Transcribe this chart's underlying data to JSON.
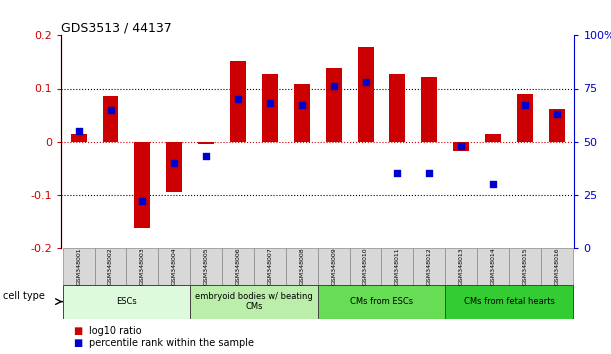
{
  "title": "GDS3513 / 44137",
  "samples": [
    "GSM348001",
    "GSM348002",
    "GSM348003",
    "GSM348004",
    "GSM348005",
    "GSM348006",
    "GSM348007",
    "GSM348008",
    "GSM348009",
    "GSM348010",
    "GSM348011",
    "GSM348012",
    "GSM348013",
    "GSM348014",
    "GSM348015",
    "GSM348016"
  ],
  "log10_ratio": [
    0.015,
    0.085,
    -0.162,
    -0.095,
    -0.005,
    0.152,
    0.128,
    0.108,
    0.138,
    0.178,
    0.128,
    0.122,
    -0.018,
    0.015,
    0.09,
    0.062
  ],
  "percentile_rank": [
    55,
    65,
    22,
    40,
    43,
    70,
    68,
    67,
    76,
    78,
    35,
    35,
    48,
    30,
    67,
    63
  ],
  "bar_color": "#cc0000",
  "dot_color": "#0000cc",
  "ylim_left": [
    -0.2,
    0.2
  ],
  "ylim_right": [
    0,
    100
  ],
  "yticks_left": [
    -0.2,
    -0.1,
    0,
    0.1,
    0.2
  ],
  "yticks_right": [
    0,
    25,
    50,
    75,
    100
  ],
  "ytick_labels_right": [
    "0",
    "25",
    "50",
    "75",
    "100%"
  ],
  "cell_type_groups": [
    {
      "label": "ESCs",
      "start": 0,
      "end": 3,
      "color": "#ddfadd"
    },
    {
      "label": "embryoid bodies w/ beating\nCMs",
      "start": 4,
      "end": 7,
      "color": "#bbeeaa"
    },
    {
      "label": "CMs from ESCs",
      "start": 8,
      "end": 11,
      "color": "#66dd55"
    },
    {
      "label": "CMs from fetal hearts",
      "start": 12,
      "end": 15,
      "color": "#33cc33"
    }
  ],
  "legend_items": [
    {
      "label": "log10 ratio",
      "color": "#cc0000"
    },
    {
      "label": "percentile rank within the sample",
      "color": "#0000cc"
    }
  ],
  "left_axis_color": "#cc0000",
  "right_axis_color": "#0000cc",
  "bar_width": 0.5
}
